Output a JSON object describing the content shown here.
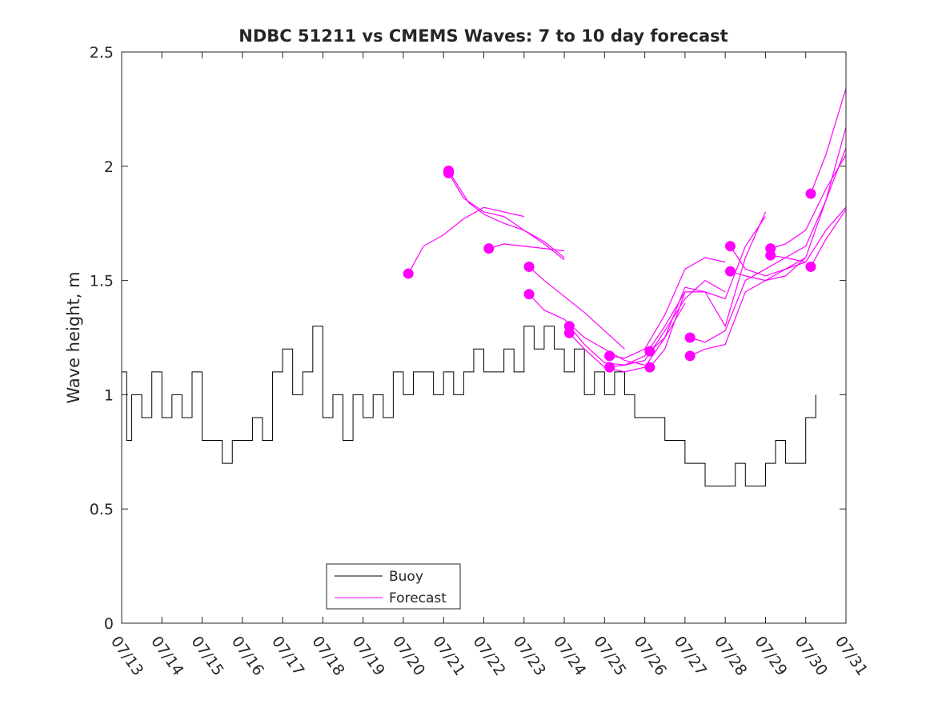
{
  "chart_data": {
    "type": "line",
    "title": "NDBC 51211 vs CMEMS Waves: 7 to 10 day forecast",
    "xlabel": "",
    "ylabel": "Wave height, m",
    "x_is_date": true,
    "xlim": [
      "07/13",
      "07/31"
    ],
    "ylim": [
      0,
      2.5
    ],
    "xtick_labels": [
      "07/13",
      "07/14",
      "07/15",
      "07/16",
      "07/17",
      "07/18",
      "07/19",
      "07/20",
      "07/21",
      "07/22",
      "07/23",
      "07/24",
      "07/25",
      "07/26",
      "07/27",
      "07/28",
      "07/29",
      "07/30",
      "07/31"
    ],
    "ytick_labels": [
      "0",
      "0.5",
      "1",
      "1.5",
      "2",
      "2.5"
    ],
    "grid": false,
    "legend_position": "bottom-left",
    "colors": {
      "buoy": "#000000",
      "forecast": "#ff00ff",
      "axes": "#262626"
    },
    "legend": [
      "Buoy",
      "Forecast"
    ],
    "series": [
      {
        "name": "Buoy",
        "style": "line",
        "x": [
          "07/13 00:00",
          "07/13 03:00",
          "07/13 06:00",
          "07/13 12:00",
          "07/13 18:00",
          "07/14 00:00",
          "07/14 06:00",
          "07/14 12:00",
          "07/14 18:00",
          "07/15 00:00",
          "07/15 06:00",
          "07/15 12:00",
          "07/15 18:00",
          "07/16 00:00",
          "07/16 06:00",
          "07/16 12:00",
          "07/16 18:00",
          "07/17 00:00",
          "07/17 06:00",
          "07/17 12:00",
          "07/17 18:00",
          "07/18 00:00",
          "07/18 06:00",
          "07/18 12:00",
          "07/18 18:00",
          "07/19 00:00",
          "07/19 06:00",
          "07/19 12:00",
          "07/19 18:00",
          "07/20 00:00",
          "07/20 06:00",
          "07/20 12:00",
          "07/20 18:00",
          "07/21 00:00",
          "07/21 06:00",
          "07/21 12:00",
          "07/21 18:00",
          "07/22 00:00",
          "07/22 06:00",
          "07/22 12:00",
          "07/22 18:00",
          "07/23 00:00",
          "07/23 06:00",
          "07/23 12:00",
          "07/23 18:00",
          "07/24 00:00",
          "07/24 06:00",
          "07/24 12:00",
          "07/24 18:00",
          "07/25 00:00",
          "07/25 06:00",
          "07/25 12:00",
          "07/25 18:00",
          "07/26 00:00",
          "07/26 06:00",
          "07/26 12:00",
          "07/26 18:00",
          "07/27 00:00",
          "07/27 06:00",
          "07/27 12:00",
          "07/27 18:00",
          "07/28 00:00",
          "07/28 06:00",
          "07/28 12:00",
          "07/28 18:00",
          "07/29 00:00",
          "07/29 06:00",
          "07/29 12:00",
          "07/29 18:00",
          "07/30 00:00",
          "07/30 06:00"
        ],
        "y": [
          1.1,
          0.8,
          1.0,
          0.9,
          1.1,
          0.9,
          1.0,
          0.9,
          1.1,
          0.8,
          0.8,
          0.7,
          0.8,
          0.8,
          0.9,
          0.8,
          1.1,
          1.2,
          1.0,
          1.1,
          1.3,
          0.9,
          1.0,
          0.8,
          1.0,
          0.9,
          1.0,
          0.9,
          1.1,
          1.0,
          1.1,
          1.1,
          1.0,
          1.1,
          1.0,
          1.1,
          1.2,
          1.1,
          1.1,
          1.2,
          1.1,
          1.3,
          1.2,
          1.3,
          1.2,
          1.1,
          1.2,
          1.0,
          1.1,
          1.0,
          1.1,
          1.0,
          0.9,
          0.9,
          0.9,
          0.8,
          0.8,
          0.7,
          0.7,
          0.6,
          0.6,
          0.6,
          0.7,
          0.6,
          0.6,
          0.7,
          0.8,
          0.7,
          0.7,
          0.9,
          1.0
        ]
      },
      {
        "name": "Forecast",
        "style": "line-with-start-markers",
        "runs": [
          {
            "x": [
              "07/20 03:00",
              "07/20 12:00",
              "07/21 00:00",
              "07/21 12:00",
              "07/22 00:00",
              "07/22 12:00",
              "07/23 00:00"
            ],
            "y": [
              1.53,
              1.65,
              1.7,
              1.77,
              1.82,
              1.8,
              1.78
            ]
          },
          {
            "x": [
              "07/21 03:00",
              "07/21 15:00",
              "07/22 00:00",
              "07/22 12:00",
              "07/23 00:00",
              "07/23 12:00",
              "07/24 00:00"
            ],
            "y": [
              1.98,
              1.84,
              1.79,
              1.75,
              1.72,
              1.67,
              1.6
            ]
          },
          {
            "x": [
              "07/21 03:00",
              "07/21 12:00",
              "07/22 00:00",
              "07/22 12:00",
              "07/23 00:00",
              "07/23 12:00",
              "07/24 00:00"
            ],
            "y": [
              1.97,
              1.86,
              1.8,
              1.78,
              1.72,
              1.66,
              1.59
            ]
          },
          {
            "x": [
              "07/22 03:00",
              "07/22 12:00",
              "07/23 00:00",
              "07/23 12:00",
              "07/24 00:00"
            ],
            "y": [
              1.64,
              1.66,
              1.65,
              1.64,
              1.63
            ]
          },
          {
            "x": [
              "07/23 03:00",
              "07/23 12:00",
              "07/24 00:00",
              "07/24 12:00",
              "07/25 00:00",
              "07/25 12:00"
            ],
            "y": [
              1.56,
              1.5,
              1.43,
              1.36,
              1.28,
              1.2
            ]
          },
          {
            "x": [
              "07/23 03:00",
              "07/23 12:00",
              "07/24 00:00",
              "07/24 12:00",
              "07/25 00:00",
              "07/25 12:00",
              "07/26 00:00"
            ],
            "y": [
              1.44,
              1.37,
              1.33,
              1.25,
              1.2,
              1.15,
              1.13
            ]
          },
          {
            "x": [
              "07/24 03:00",
              "07/24 12:00",
              "07/25 00:00",
              "07/25 12:00",
              "07/26 00:00",
              "07/26 12:00",
              "07/27 00:00"
            ],
            "y": [
              1.3,
              1.22,
              1.14,
              1.13,
              1.17,
              1.3,
              1.45
            ]
          },
          {
            "x": [
              "07/24 03:00",
              "07/24 12:00",
              "07/25 00:00",
              "07/25 12:00",
              "07/26 00:00",
              "07/26 12:00",
              "07/27 00:00"
            ],
            "y": [
              1.27,
              1.2,
              1.12,
              1.1,
              1.12,
              1.25,
              1.4
            ]
          },
          {
            "x": [
              "07/25 03:00",
              "07/25 12:00",
              "07/26 00:00",
              "07/26 12:00",
              "07/27 00:00",
              "07/27 12:00",
              "07/28 00:00"
            ],
            "y": [
              1.17,
              1.16,
              1.2,
              1.35,
              1.55,
              1.6,
              1.58
            ]
          },
          {
            "x": [
              "07/25 03:00",
              "07/25 12:00",
              "07/26 00:00",
              "07/26 12:00",
              "07/27 00:00",
              "07/27 12:00",
              "07/28 00:00"
            ],
            "y": [
              1.12,
              1.13,
              1.15,
              1.28,
              1.42,
              1.5,
              1.45
            ]
          },
          {
            "x": [
              "07/26 03:00",
              "07/26 12:00",
              "07/27 00:00",
              "07/27 12:00",
              "07/28 00:00",
              "07/28 12:00",
              "07/29 00:00"
            ],
            "y": [
              1.19,
              1.25,
              1.47,
              1.45,
              1.3,
              1.6,
              1.8
            ]
          },
          {
            "x": [
              "07/26 03:00",
              "07/26 12:00",
              "07/27 00:00",
              "07/27 12:00",
              "07/28 00:00",
              "07/28 12:00",
              "07/29 00:00"
            ],
            "y": [
              1.12,
              1.2,
              1.45,
              1.45,
              1.42,
              1.65,
              1.78
            ]
          },
          {
            "x": [
              "07/27 03:00",
              "07/27 12:00",
              "07/28 00:00",
              "07/28 12:00",
              "07/29 00:00",
              "07/29 12:00",
              "07/30 00:00"
            ],
            "y": [
              1.25,
              1.23,
              1.28,
              1.5,
              1.55,
              1.6,
              1.58
            ]
          },
          {
            "x": [
              "07/27 03:00",
              "07/27 12:00",
              "07/28 00:00",
              "07/28 12:00",
              "07/29 00:00",
              "07/29 12:00",
              "07/30 00:00"
            ],
            "y": [
              1.17,
              1.2,
              1.22,
              1.45,
              1.5,
              1.55,
              1.6
            ]
          },
          {
            "x": [
              "07/28 03:00",
              "07/28 12:00",
              "07/29 00:00",
              "07/29 12:00",
              "07/30 00:00",
              "07/30 12:00",
              "07/31 00:00"
            ],
            "y": [
              1.65,
              1.55,
              1.52,
              1.55,
              1.58,
              1.72,
              1.82
            ]
          },
          {
            "x": [
              "07/28 03:00",
              "07/28 12:00",
              "07/29 00:00",
              "07/29 12:00",
              "07/30 00:00",
              "07/30 12:00",
              "07/31 00:00"
            ],
            "y": [
              1.54,
              1.52,
              1.5,
              1.52,
              1.6,
              1.85,
              2.08
            ]
          },
          {
            "x": [
              "07/29 03:00",
              "07/29 12:00",
              "07/30 00:00",
              "07/30 12:00",
              "07/31 00:00"
            ],
            "y": [
              1.64,
              1.66,
              1.72,
              1.9,
              2.05
            ]
          },
          {
            "x": [
              "07/29 03:00",
              "07/29 12:00",
              "07/30 00:00",
              "07/30 12:00",
              "07/31 00:00"
            ],
            "y": [
              1.61,
              1.6,
              1.65,
              1.85,
              2.17
            ]
          },
          {
            "x": [
              "07/30 03:00",
              "07/30 12:00",
              "07/31 00:00"
            ],
            "y": [
              1.88,
              2.05,
              2.34
            ]
          },
          {
            "x": [
              "07/30 03:00",
              "07/30 12:00",
              "07/31 00:00"
            ],
            "y": [
              1.56,
              1.68,
              1.81
            ]
          }
        ]
      }
    ]
  }
}
